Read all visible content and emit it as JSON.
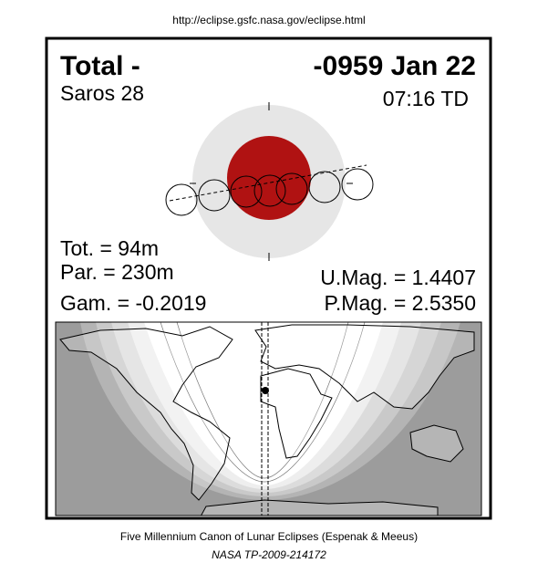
{
  "header": {
    "url": "http://eclipse.gsfc.nasa.gov/eclipse.html"
  },
  "eclipse": {
    "type": "Total  -",
    "date": "-0959 Jan 22",
    "saros": "Saros  28",
    "time": "07:16 TD",
    "stats": {
      "tot": "Tot. =  94m",
      "par": "Par. = 230m",
      "gam": "Gam. = -0.2019",
      "umag": "U.Mag. = 1.4407",
      "pmag": "P.Mag. = 2.5350"
    }
  },
  "footer": {
    "line1": "Five Millennium Canon of Lunar Eclipses (Espenak & Meeus)",
    "line2": "NASA TP-2009-214172"
  }
}
